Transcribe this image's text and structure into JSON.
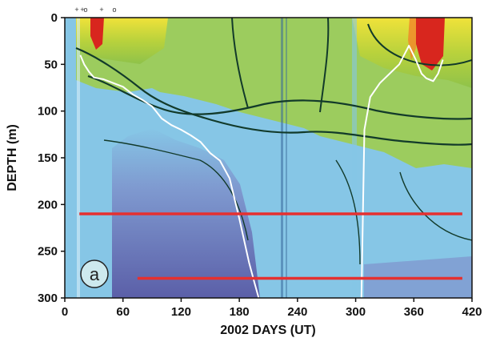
{
  "chart_data": {
    "type": "heatmap",
    "xlabel": "2002 DAYS (UT)",
    "ylabel": "DEPTH (m)",
    "xlim": [
      0,
      420
    ],
    "ylim": [
      300,
      0
    ],
    "x_ticks": [
      "0",
      "60",
      "120",
      "180",
      "240",
      "300",
      "360",
      "420"
    ],
    "y_ticks": [
      "0",
      "50",
      "100",
      "150",
      "200",
      "250",
      "300"
    ],
    "panel_label": "a",
    "top_markers": [
      "+",
      "+",
      "o",
      "+",
      "o"
    ],
    "colormap_stops": [
      "#5b5fa8",
      "#7f93cc",
      "#86c6e6",
      "#a6d39a",
      "#8fc24a",
      "#c9d83c",
      "#f0e23a",
      "#f08a2a",
      "#d8261e"
    ],
    "series": [
      {
        "color": "#ffffff",
        "x": [
          16,
          20,
          25,
          30,
          40,
          50,
          60,
          70,
          80,
          90,
          100,
          110,
          120,
          130,
          140,
          150,
          160,
          170,
          180,
          190,
          196,
          200
        ],
        "y": [
          40,
          50,
          58,
          64,
          66,
          70,
          74,
          82,
          88,
          95,
          108,
          115,
          120,
          126,
          133,
          145,
          153,
          172,
          215,
          262,
          285,
          300
        ]
      },
      {
        "color": "#ffffff",
        "x": [
          306,
          309,
          315,
          325,
          335,
          345,
          355,
          362,
          368,
          373,
          380,
          385,
          390
        ],
        "y": [
          300,
          120,
          85,
          70,
          60,
          50,
          30,
          45,
          60,
          65,
          68,
          60,
          45
        ]
      },
      {
        "color": "#e53030",
        "x": [
          15,
          410
        ],
        "y": [
          210,
          210
        ]
      },
      {
        "color": "#e53030",
        "x": [
          75,
          410
        ],
        "y": [
          279,
          279
        ]
      }
    ]
  }
}
